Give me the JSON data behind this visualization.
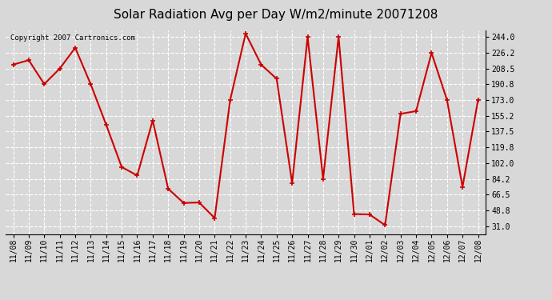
{
  "title": "Solar Radiation Avg per Day W/m2/minute 20071208",
  "copyright": "Copyright 2007 Cartronics.com",
  "dates": [
    "11/08",
    "11/09",
    "11/10",
    "11/11",
    "11/12",
    "11/13",
    "11/14",
    "11/15",
    "11/16",
    "11/17",
    "11/18",
    "11/19",
    "11/20",
    "11/21",
    "11/22",
    "11/23",
    "11/24",
    "11/25",
    "11/26",
    "11/27",
    "11/28",
    "11/29",
    "11/30",
    "12/01",
    "12/02",
    "12/03",
    "12/04",
    "12/05",
    "12/06",
    "12/07",
    "12/08"
  ],
  "values": [
    213.0,
    218.0,
    191.0,
    208.5,
    232.0,
    190.8,
    145.0,
    97.5,
    88.0,
    150.0,
    73.0,
    57.0,
    57.5,
    40.0,
    173.0,
    248.0,
    213.0,
    197.0,
    79.5,
    244.0,
    84.2,
    244.5,
    44.5,
    44.0,
    32.0,
    157.5,
    160.5,
    226.2,
    173.0,
    75.0,
    173.0
  ],
  "y_ticks": [
    31.0,
    48.8,
    66.5,
    84.2,
    102.0,
    119.8,
    137.5,
    155.2,
    173.0,
    190.8,
    208.5,
    226.2,
    244.0
  ],
  "ylim": [
    22.0,
    252.0
  ],
  "line_color": "#cc0000",
  "marker": "+",
  "marker_color": "#cc0000",
  "marker_size": 5,
  "line_width": 1.5,
  "bg_color": "#d8d8d8",
  "plot_bg_color": "#d8d8d8",
  "grid_color": "#ffffff",
  "title_fontsize": 11,
  "tick_fontsize": 7,
  "copyright_fontsize": 6.5
}
